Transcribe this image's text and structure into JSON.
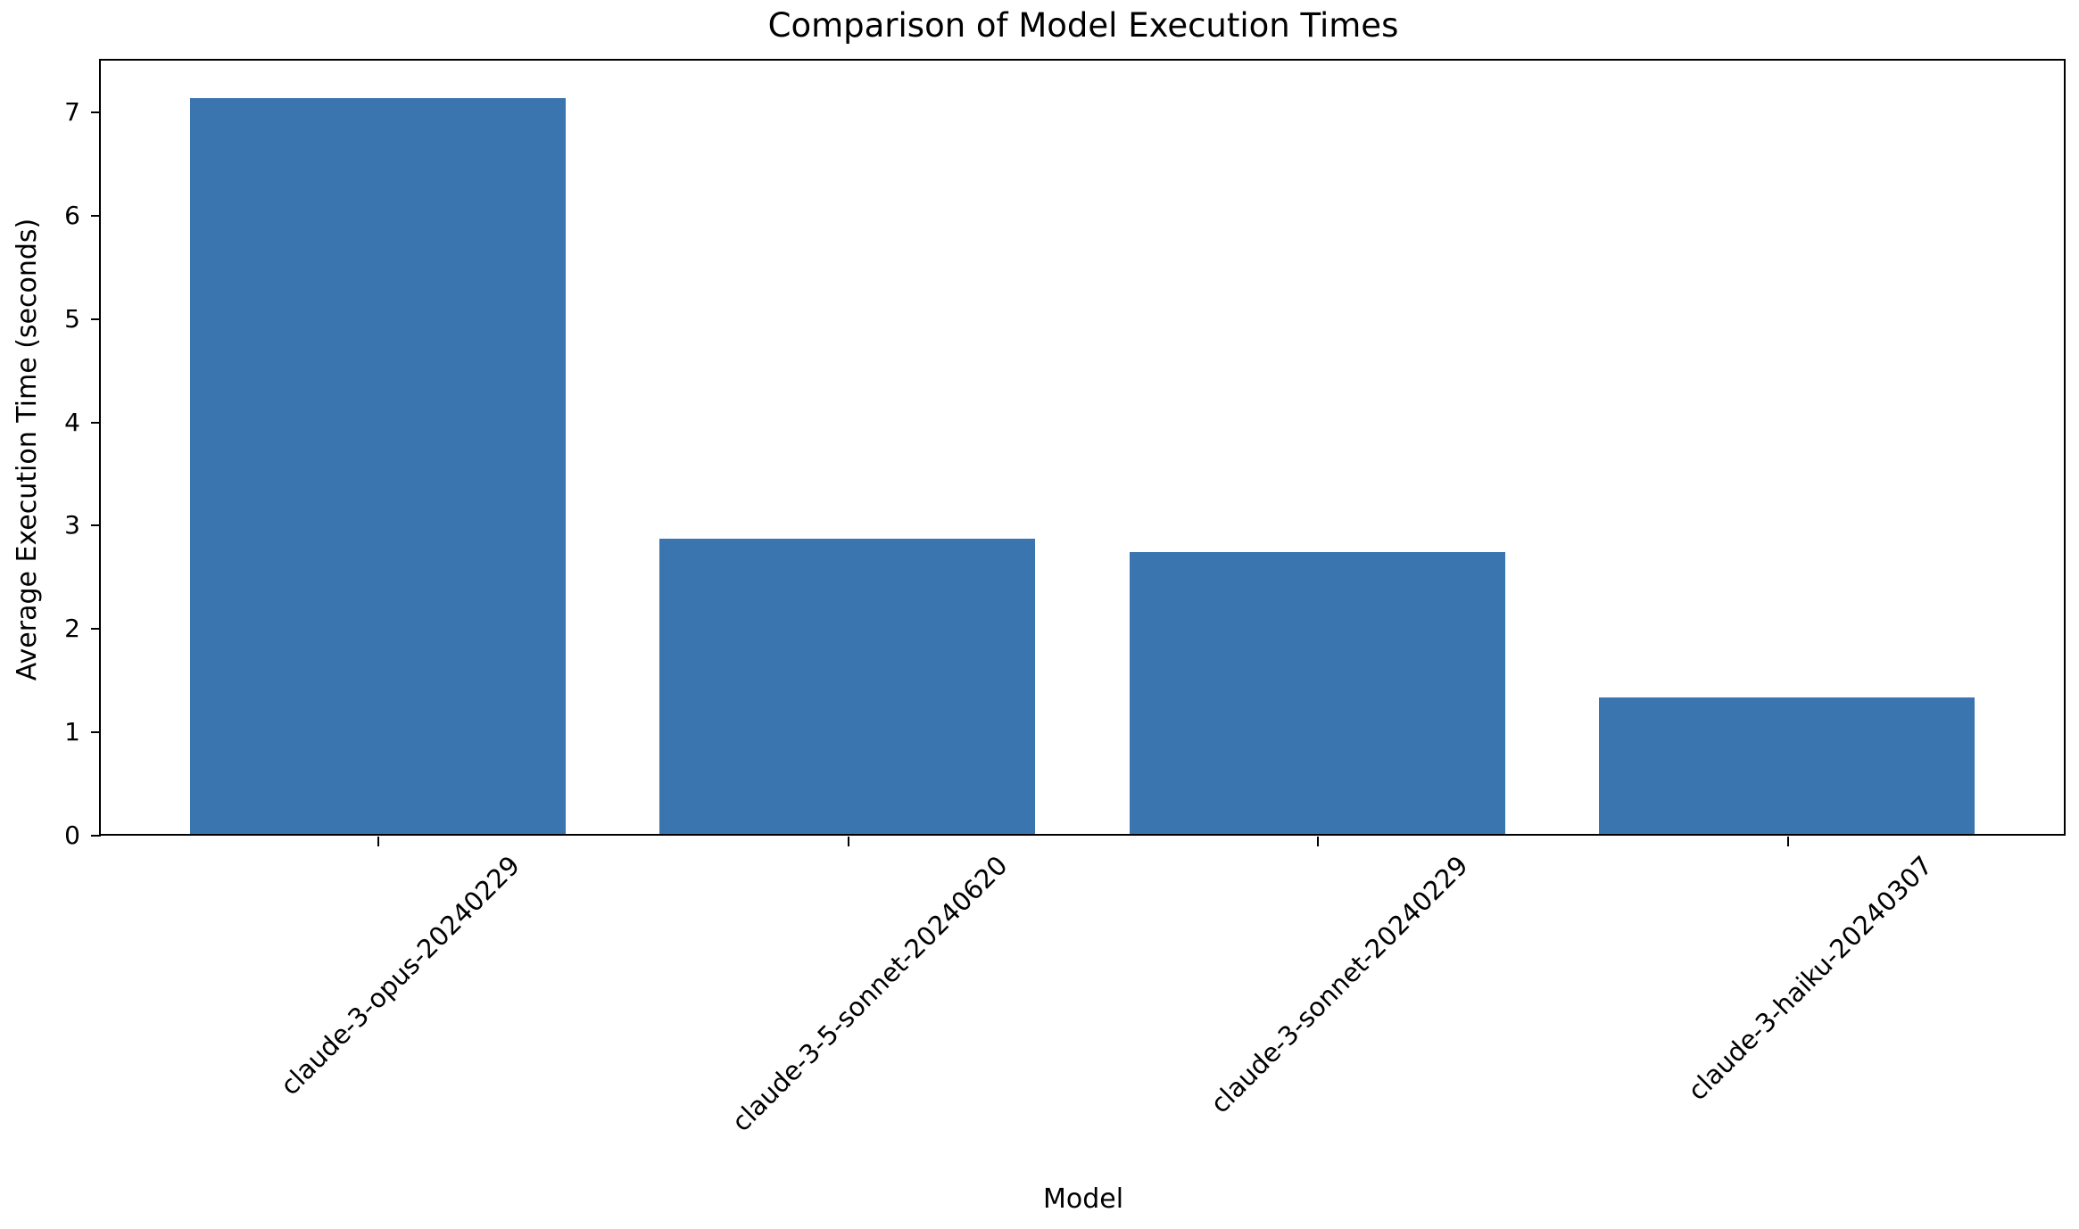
{
  "chart_data": {
    "type": "bar",
    "title": "Comparison of Model Execution Times",
    "xlabel": "Model",
    "ylabel": "Average Execution Time (seconds)",
    "categories": [
      "claude-3-opus-20240229",
      "claude-3-5-sonnet-20240620",
      "claude-3-sonnet-20240229",
      "claude-3-haiku-20240307"
    ],
    "values": [
      7.14,
      2.86,
      2.73,
      1.32
    ],
    "ylim": [
      0,
      7.5
    ],
    "yticks": [
      0,
      1,
      2,
      3,
      4,
      5,
      6,
      7
    ],
    "xtick_rotation_deg": 45,
    "bar_color": "#3b75b0",
    "axis_color": "#000000",
    "grid": false,
    "legend": null
  }
}
